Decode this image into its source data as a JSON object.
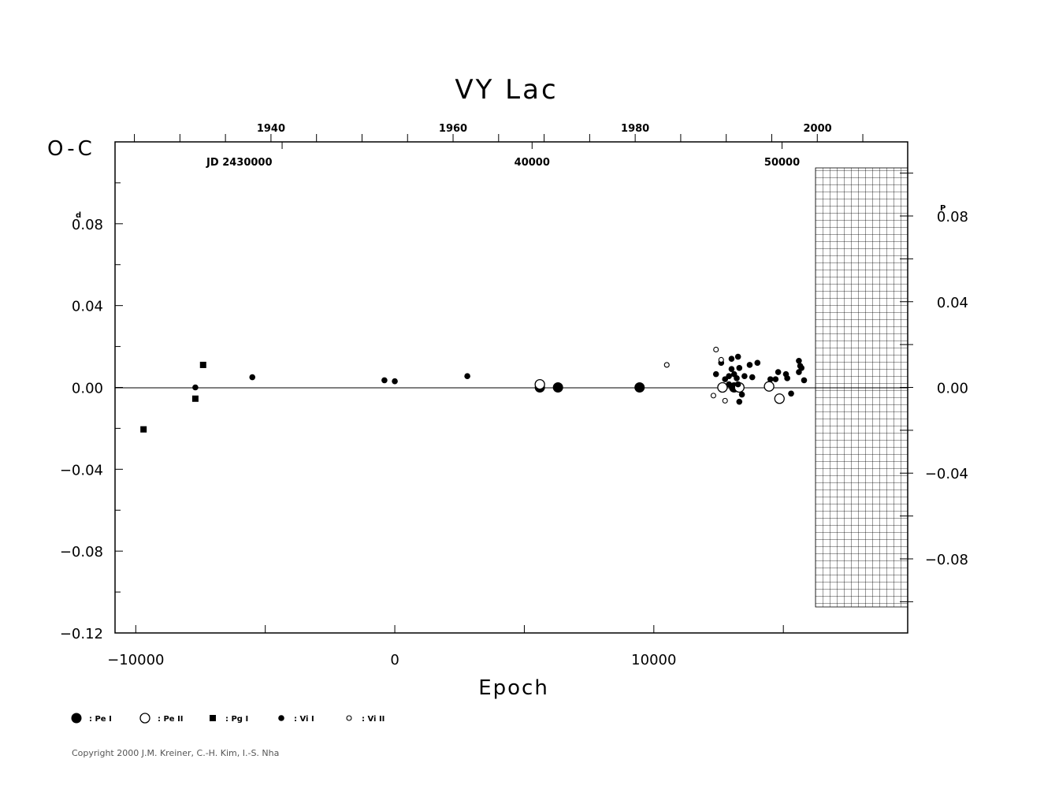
{
  "chart_data": {
    "type": "scatter",
    "title": "VY Lac",
    "ylabel": "O-C",
    "xlabel": "Epoch",
    "left_unit": "d",
    "right_unit": "P",
    "xlim": [
      -10800,
      19800
    ],
    "ylim": [
      -0.12,
      0.12
    ],
    "right_ylim": [
      -0.1146,
      0.1146
    ],
    "grid": false,
    "x_ticks": [
      {
        "value": -10000,
        "label": "−10000"
      },
      {
        "value": 0,
        "label": "0"
      },
      {
        "value": 10000,
        "label": "10000"
      }
    ],
    "y_ticks": [
      {
        "value": 0.08,
        "label": "0.08",
        "super": "d"
      },
      {
        "value": 0.04,
        "label": "0.04"
      },
      {
        "value": 0.0,
        "label": "0.00"
      },
      {
        "value": -0.04,
        "label": "−0.04"
      },
      {
        "value": -0.08,
        "label": "−0.08"
      },
      {
        "value": -0.12,
        "label": "−0.12"
      }
    ],
    "right_y_ticks": [
      {
        "value": 0.08,
        "label": "0.08",
        "super": "P"
      },
      {
        "value": 0.04,
        "label": "0.04"
      },
      {
        "value": 0.0,
        "label": "0.00"
      },
      {
        "value": -0.04,
        "label": "−0.04"
      },
      {
        "value": -0.08,
        "label": "−0.08"
      }
    ],
    "year_ticks": [
      {
        "epoch": -4780,
        "label": "1940"
      },
      {
        "epoch": 2250,
        "label": "1960"
      },
      {
        "epoch": 9280,
        "label": "1980"
      },
      {
        "epoch": 16320,
        "label": "2000"
      }
    ],
    "jd_ticks": [
      {
        "epoch": -6000,
        "label": "JD  2430000"
      },
      {
        "epoch": 5300,
        "label": "40000"
      },
      {
        "epoch": 14950,
        "label": "50000"
      }
    ],
    "legend": [
      {
        "symbol": "PeI",
        "label": ": Pe I"
      },
      {
        "symbol": "PeII",
        "label": ": Pe II"
      },
      {
        "symbol": "PgI",
        "label": ": Pg I"
      },
      {
        "symbol": "VII",
        "label": ": Vi I"
      },
      {
        "symbol": "VIII",
        "label": ": Vi II"
      }
    ],
    "series": [
      {
        "name": "Pe I",
        "symbol": "PeI",
        "x": [
          5600,
          6300,
          9450,
          13100
        ],
        "y": [
          0.0,
          0.0,
          0.0,
          0.0
        ]
      },
      {
        "name": "Pe II",
        "symbol": "PeII",
        "x": [
          5600,
          12650,
          13300,
          14450,
          14850
        ],
        "y": [
          0.0015,
          0.0,
          0.0,
          0.0005,
          -0.0055
        ]
      },
      {
        "name": "Pg I",
        "symbol": "PgI",
        "x": [
          -9700,
          -7700,
          -7400
        ],
        "y": [
          -0.0205,
          -0.0055,
          0.011
        ]
      },
      {
        "name": "Vi I",
        "symbol": "VII",
        "x": [
          -7700,
          -5500,
          -400,
          0,
          2800,
          12400,
          12600,
          12750,
          12900,
          12900,
          13000,
          13000,
          13100,
          13200,
          13250,
          13250,
          13300,
          13300,
          13400,
          13500,
          13700,
          13800,
          14000,
          14500,
          14700,
          14800,
          15100,
          15150,
          15300,
          15600,
          15700,
          15800,
          15600,
          15650
        ],
        "y": [
          0.0,
          0.005,
          0.0035,
          0.003,
          0.0055,
          0.0065,
          0.012,
          0.004,
          0.0015,
          0.0055,
          0.009,
          0.014,
          0.0065,
          0.0045,
          0.0015,
          0.015,
          0.0095,
          -0.007,
          -0.0035,
          0.0055,
          0.011,
          0.005,
          0.012,
          0.004,
          0.004,
          0.0075,
          0.0065,
          0.0045,
          -0.003,
          0.013,
          0.0095,
          0.0035,
          0.0075,
          0.0105
        ]
      },
      {
        "name": "Vi II",
        "symbol": "VIII",
        "x": [
          10500,
          12300,
          12400,
          12600,
          12750
        ],
        "y": [
          0.011,
          -0.004,
          0.0185,
          0.0135,
          -0.0065
        ]
      }
    ]
  },
  "copyright": "Copyright 2000 J.M. Kreiner, C.-H. Kim, I.-S. Nha"
}
